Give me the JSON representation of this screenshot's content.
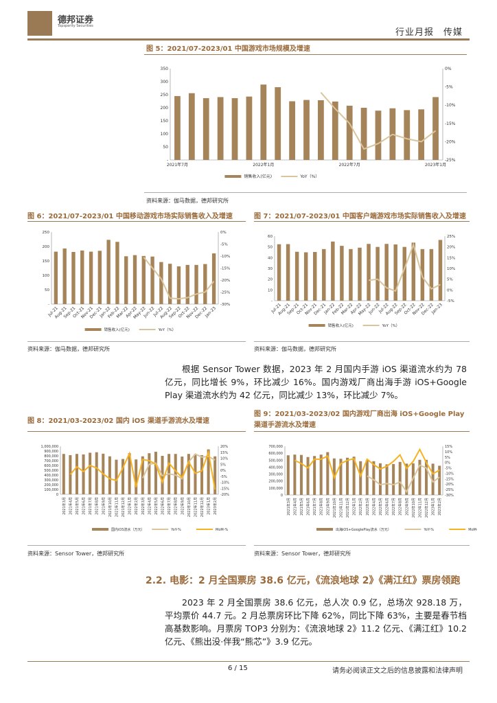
{
  "header": {
    "logo_cn": "德邦证券",
    "logo_en": "Topsperity Securities",
    "category": "行业月报　传媒"
  },
  "colors": {
    "bar": "#a6845a",
    "yoy": "#d9c49b",
    "mom": "#f5b324",
    "accent": "#9a7a55"
  },
  "fig5": {
    "title": "图 5：2021/07-2023/01 中国游戏市场规模及增速",
    "source": "资料来源：伽马数据，德邦研究所"
  },
  "fig6": {
    "title": "图 6：2021/07-2023/01 中国移动游戏市场实际销售收入及增速",
    "source": "资料来源：伽马数据，德邦研究所"
  },
  "fig7": {
    "title": "图 7：2021/07-2023/01 中国客户端游戏市场实际销售收入及增速",
    "source": "资料来源：伽马数据，德邦研究所"
  },
  "para1": "根据 Sensor Tower 数据，2023 年 2 月国内手游 iOS 渠道流水约为 78 亿元，同比增长 9%，环比减少 16%。国内游戏厂商出海手游 iOS+Google Play 渠道流水约为 42 亿元，同比减少 13%，环比减少 7%。",
  "fig8": {
    "title": "图 8：2021/03-2023/02 国内 iOS 渠道手游流水及增速",
    "source": "资料来源：Sensor Tower，德邦研究所"
  },
  "fig9": {
    "title": "图 9：2021/03-2023/02 国内游戏厂商出海 iOS+Google Play 渠道手游流水及增速",
    "source": "资料来源：Sensor Tower，德邦研究所"
  },
  "section": {
    "heading": "2.2. 电影：2 月全国票房 38.6 亿元，《流浪地球 2》《满江红》票房领跑",
    "para": "2023 年 2 月全国票房 38.6 亿元，总人次 0.9 亿，总场次 928.18 万，平均票价 44.7 元。2 月总票房环比下降 62%，同比下降 63%，主要是春节档高基数影响。月票房 TOP3 分别为：《流浪地球 2》11.2 亿元、《满江红》10.2 亿元、《熊出没·伴我“熊芯”》3.9 亿元。"
  },
  "footer": {
    "page": "6 / 15",
    "disclaimer": "请务必阅读正文之后的信息披露和法律声明"
  },
  "chart_data": [
    {
      "type": "bar+line",
      "categories": [
        "2021年7月",
        "",
        "",
        "",
        "",
        "",
        "2022年1月",
        "",
        "",
        "",
        "",
        "",
        "2022年7月",
        "",
        "",
        "",
        "",
        "",
        "2023年1月"
      ],
      "tick_labels": [
        "2021年7月",
        "2022年1月",
        "2022年7月",
        "2023年1月"
      ],
      "ylim": [
        0,
        350
      ],
      "yticks": [
        "-",
        "50",
        "100",
        "150",
        "200",
        "250",
        "300",
        "350"
      ],
      "y2lim": [
        -25,
        0
      ],
      "y2ticks": [
        "-25%",
        "-20%",
        "-15%",
        "-10%",
        "-5%",
        "0%"
      ],
      "series": [
        {
          "name": "销售收入(亿元)",
          "kind": "bar",
          "values": [
            245,
            256,
            237,
            241,
            237,
            243,
            289,
            279,
            225,
            230,
            229,
            224,
            208,
            200,
            189,
            198,
            191,
            194,
            241
          ]
        },
        {
          "name": "YoY（%）",
          "kind": "line",
          "axis": "right",
          "color": "yoy",
          "values": [
            null,
            null,
            null,
            null,
            null,
            null,
            null,
            null,
            null,
            null,
            -6.5,
            -11,
            -15,
            -22,
            -20.5,
            -18,
            -19.2,
            -20,
            -17
          ]
        }
      ]
    },
    {
      "type": "bar+line",
      "categories": [
        "Jul-21",
        "Aug-21",
        "Sep-21",
        "Oct-21",
        "Nov-21",
        "Dec-21",
        "Jan-22",
        "Feb-22",
        "Mar-22",
        "Apr-22",
        "May-22",
        "Jun-22",
        "Jul-22",
        "Aug-22",
        "Sep-22",
        "Oct-22",
        "Nov-22",
        "Dec-22",
        "Jan-23"
      ],
      "ylim": [
        0,
        250
      ],
      "yticks": [
        "-",
        "50",
        "100",
        "150",
        "200",
        "250"
      ],
      "y2lim": [
        -30,
        0
      ],
      "y2ticks": [
        "-30%",
        "-25%",
        "-20%",
        "-15%",
        "-10%",
        "-5%",
        "0%"
      ],
      "series": [
        {
          "name": "销售收入(亿元)",
          "kind": "bar",
          "values": [
            182,
            193,
            181,
            186,
            182,
            185,
            223,
            216,
            166,
            170,
            167,
            165,
            146,
            140,
            131,
            136,
            136,
            139,
            176
          ]
        },
        {
          "name": "YoY（%）",
          "kind": "line",
          "axis": "right",
          "color": "yoy",
          "values": [
            null,
            null,
            null,
            null,
            null,
            null,
            null,
            null,
            null,
            null,
            -10.5,
            -15,
            -19.5,
            -27.5,
            -27.8,
            -27.3,
            -25.8,
            -25,
            -20.5
          ]
        }
      ]
    },
    {
      "type": "bar+line",
      "categories": [
        "Jul-21",
        "Aug-21",
        "Sep-21",
        "Oct-21",
        "Nov-21",
        "Dec-21",
        "Jan-22",
        "Feb-22",
        "Mar-22",
        "Apr-22",
        "May-22",
        "Jun-22",
        "Jul-22",
        "Aug-22",
        "Sep-22",
        "Oct-22",
        "Nov-22",
        "Dec-22",
        "Jan-23"
      ],
      "ylim": [
        0,
        60
      ],
      "yticks": [
        "-",
        "10",
        "20",
        "30",
        "40",
        "50",
        "60"
      ],
      "y2lim": [
        -5,
        25
      ],
      "y2ticks": [
        "-5%",
        "0%",
        "5%",
        "10%",
        "15%",
        "20%",
        "25%"
      ],
      "series": [
        {
          "name": "销售收入(亿元)",
          "kind": "bar",
          "values": [
            52.5,
            52.6,
            45.5,
            45,
            45.3,
            48,
            55,
            51,
            48,
            49.3,
            52.8,
            50,
            52.8,
            52.3,
            50,
            54,
            48,
            48,
            56.5
          ]
        },
        {
          "name": "YoY（%）",
          "kind": "line",
          "axis": "right",
          "color": "yoy",
          "values": [
            null,
            null,
            null,
            null,
            null,
            null,
            null,
            null,
            null,
            null,
            4.5,
            5,
            1,
            -0.5,
            10,
            21,
            6,
            0.5,
            2.5
          ]
        }
      ]
    },
    {
      "type": "bar+line",
      "categories": [
        "2021年3月",
        "2021年4月",
        "2021年5月",
        "2021年6月",
        "2021年7月",
        "2021年8月",
        "2021年9月",
        "2021年10月",
        "2021年11月",
        "2021年12月",
        "2022年1月",
        "2022年2月",
        "2022年3月",
        "2022年4月",
        "2022年5月",
        "2022年6月",
        "2022年7月",
        "2022年8月",
        "2022年9月",
        "2022年10月",
        "2022年11月",
        "2022年12月",
        "2023年1月",
        "2023年2月"
      ],
      "ylim": [
        0,
        1000000
      ],
      "yticks": [
        "0",
        "100,000",
        "200,000",
        "300,000",
        "400,000",
        "500,000",
        "600,000",
        "700,000",
        "800,000",
        "900,000",
        "1,000,000"
      ],
      "y2lim": [
        -20,
        20
      ],
      "y2ticks": [
        "-20%",
        "-15%",
        "-10%",
        "-5%",
        "0%",
        "5%",
        "10%",
        "15%",
        "20%"
      ],
      "series": [
        {
          "name": "国内iOS流水（万元）",
          "kind": "bar",
          "values": [
            840000,
            815000,
            840000,
            830000,
            865000,
            875000,
            845000,
            790000,
            720000,
            735000,
            855000,
            725000,
            790000,
            855000,
            885000,
            800000,
            840000,
            840000,
            785000,
            840000,
            835000,
            815000,
            935000,
            790000
          ]
        },
        {
          "name": "YoY-%",
          "kind": "line",
          "axis": "right",
          "color": "yoy",
          "values": [
            null,
            null,
            null,
            null,
            null,
            null,
            null,
            null,
            null,
            null,
            null,
            null,
            -6.5,
            5,
            6,
            -4.5,
            -3,
            -4,
            -7,
            7,
            13.5,
            11,
            11.5,
            8.5
          ]
        },
        {
          "name": "MoM-%",
          "kind": "line",
          "axis": "right",
          "color": "mom",
          "values": [
            null,
            -3.5,
            3,
            -1,
            4,
            2,
            -3,
            -7,
            -8.5,
            2,
            14,
            -14,
            9,
            8,
            5,
            -10,
            6,
            -0.5,
            -6,
            7,
            -2.5,
            -0.5,
            15,
            -16
          ]
        }
      ]
    },
    {
      "type": "bar+line",
      "categories": [
        "2021年3月",
        "2021年4月",
        "2021年5月",
        "2021年6月",
        "2021年7月",
        "2021年8月",
        "2021年9月",
        "2021年10月",
        "2021年11月",
        "2021年12月",
        "2022年1月",
        "2022年2月",
        "2022年3月",
        "2022年4月",
        "2022年5月",
        "2022年6月",
        "2022年7月",
        "2022年8月",
        "2022年9月",
        "2022年10月",
        "2022年11月",
        "2022年12月",
        "2023年1月",
        "2023年2月"
      ],
      "ylim": [
        0,
        700000
      ],
      "yticks": [
        "0",
        "100,000",
        "200,000",
        "300,000",
        "400,000",
        "500,000",
        "600,000",
        "700,000"
      ],
      "y2lim": [
        -30,
        15
      ],
      "y2ticks": [
        "-30%",
        "-25%",
        "-20%",
        "-15%",
        "-10%",
        "-5%",
        "0%",
        "5%",
        "10%",
        "15%"
      ],
      "series": [
        {
          "name": "出海iOS+GooglePlay流水（万元）",
          "kind": "bar",
          "values": [
            570000,
            580000,
            575000,
            545000,
            560000,
            580000,
            615000,
            525000,
            520000,
            535000,
            550000,
            485000,
            500000,
            485000,
            455000,
            440000,
            445000,
            475000,
            450000,
            455000,
            505000,
            505000,
            450000,
            420000
          ]
        },
        {
          "name": "YoY-%",
          "kind": "line",
          "axis": "right",
          "color": "yoy",
          "values": [
            null,
            null,
            null,
            null,
            null,
            null,
            null,
            null,
            null,
            null,
            null,
            null,
            -12.5,
            -16,
            -20.5,
            -19.5,
            -20.5,
            -18,
            -27,
            -14.5,
            -2.5,
            -5,
            -18,
            -13.5
          ]
        },
        {
          "name": "MoM-%",
          "kind": "line",
          "axis": "right",
          "color": "mom",
          "values": [
            null,
            2,
            -1,
            -5,
            3,
            3,
            6,
            -14,
            -1,
            2,
            3.5,
            -12.5,
            3,
            -2,
            -6,
            -3.5,
            1,
            7,
            -5.5,
            1,
            12,
            0,
            -10.5,
            -7
          ]
        }
      ]
    }
  ]
}
